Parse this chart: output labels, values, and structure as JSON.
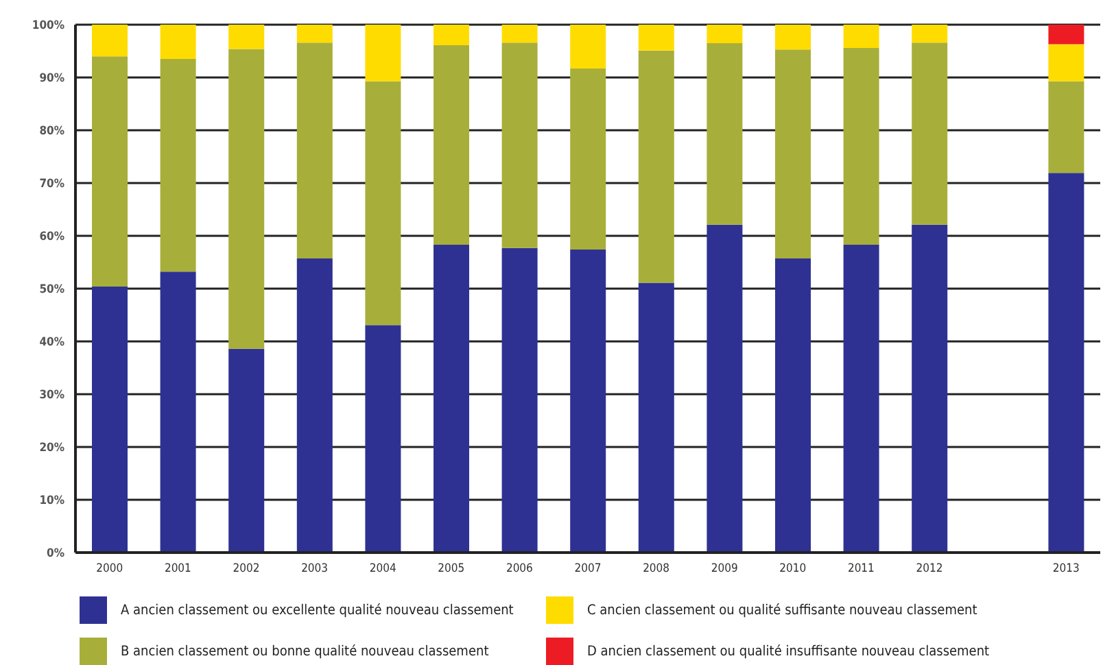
{
  "chart_data": {
    "type": "bar",
    "stacked": true,
    "categories": [
      "2000",
      "2001",
      "2002",
      "2003",
      "2004",
      "2005",
      "2006",
      "2007",
      "2008",
      "2009",
      "2010",
      "2011",
      "2012",
      null,
      "2013"
    ],
    "series": [
      {
        "name": "A ancien classement ou excellente qualité nouveau classement",
        "color": "#2e3192",
        "values": [
          50.4,
          53.2,
          38.6,
          55.7,
          43.1,
          58.3,
          57.7,
          57.4,
          51.1,
          62.1,
          55.7,
          58.3,
          62.1,
          null,
          71.9
        ]
      },
      {
        "name": "B ancien classement ou bonne qualité nouveau classement",
        "color": "#a8ae3a",
        "values": [
          43.6,
          40.3,
          56.8,
          40.9,
          46.2,
          37.8,
          38.9,
          34.3,
          44.0,
          34.4,
          39.6,
          37.3,
          34.5,
          null,
          17.4
        ]
      },
      {
        "name": "C ancien classement ou qualité suffisante nouveau classement",
        "color": "#ffdc00",
        "values": [
          6.0,
          6.5,
          4.6,
          3.4,
          10.7,
          3.9,
          3.4,
          8.3,
          4.9,
          3.5,
          4.7,
          4.4,
          3.4,
          null,
          7.0
        ]
      },
      {
        "name": "D ancien classement ou qualité insuffisante nouveau classement",
        "color": "#ed1c24",
        "values": [
          0,
          0,
          0,
          0,
          0,
          0,
          0,
          0,
          0,
          0,
          0,
          0,
          0,
          null,
          3.7
        ]
      }
    ],
    "ylim": [
      0,
      100
    ],
    "yticks": [
      {
        "value": 0,
        "label": "0%"
      },
      {
        "value": 10,
        "label": "10%"
      },
      {
        "value": 20,
        "label": "20%"
      },
      {
        "value": 30,
        "label": "30%"
      },
      {
        "value": 40,
        "label": "40%"
      },
      {
        "value": 50,
        "label": "50%"
      },
      {
        "value": 60,
        "label": "60%"
      },
      {
        "value": 70,
        "label": "70%"
      },
      {
        "value": 80,
        "label": "80%"
      },
      {
        "value": 90,
        "label": "90%"
      },
      {
        "value": 100,
        "label": "100%"
      }
    ],
    "grid": "y",
    "legend": "bottom"
  }
}
